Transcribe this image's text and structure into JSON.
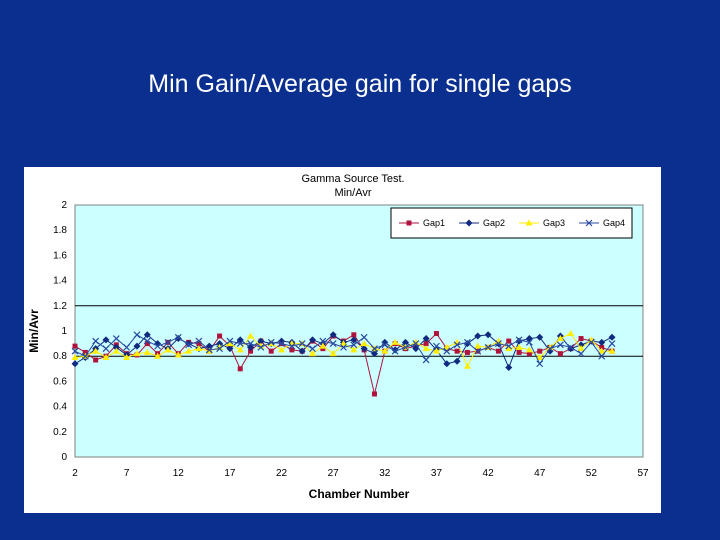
{
  "slide": {
    "title": "Min Gain/Average gain for single gaps"
  },
  "colors": {
    "background": "#0a2f8e",
    "plot_area": "#ccffff",
    "gap1": "#b0123c",
    "gap2": "#102a80",
    "gap3": "#ffee00",
    "gap4": "#2a4aa0"
  },
  "chart_data": {
    "type": "line",
    "title": "Gamma Source Test.",
    "subtitle": "Min/Avr",
    "xlabel": "Chamber Number",
    "ylabel": "Min/Avr",
    "xlim": [
      2,
      57
    ],
    "ylim": [
      0,
      2
    ],
    "x_ticks": [
      "2",
      "7",
      "12",
      "17",
      "22",
      "27",
      "32",
      "37",
      "42",
      "47",
      "52",
      "57"
    ],
    "y_ticks": [
      "0",
      "0.2",
      "0.4",
      "0.6",
      "0.8",
      "1",
      "1.2",
      "1.4",
      "1.6",
      "1.8",
      "2"
    ],
    "reference_lines": [
      0.8,
      1.2
    ],
    "legend_position": "top-right",
    "x": [
      2,
      3,
      4,
      5,
      6,
      7,
      8,
      9,
      10,
      11,
      12,
      13,
      14,
      15,
      16,
      17,
      18,
      19,
      20,
      21,
      22,
      23,
      24,
      25,
      26,
      27,
      28,
      29,
      30,
      31,
      32,
      33,
      34,
      35,
      36,
      37,
      38,
      39,
      40,
      41,
      42,
      43,
      44,
      45,
      46,
      47,
      48,
      49,
      50,
      51,
      52,
      53,
      54
    ],
    "series": [
      {
        "name": "Gap1",
        "marker": "square",
        "values": [
          0.88,
          0.83,
          0.77,
          0.8,
          0.89,
          0.82,
          0.81,
          0.9,
          0.82,
          0.91,
          0.82,
          0.91,
          0.9,
          0.84,
          0.96,
          0.88,
          0.7,
          0.84,
          0.92,
          0.84,
          0.9,
          0.85,
          0.84,
          0.92,
          0.86,
          0.96,
          0.92,
          0.97,
          0.85,
          0.5,
          0.84,
          0.9,
          0.86,
          0.88,
          0.9,
          0.98,
          0.86,
          0.84,
          0.83,
          0.84,
          0.87,
          0.84,
          0.92,
          0.83,
          0.82,
          0.84,
          0.87,
          0.82,
          0.86,
          0.94,
          0.92,
          0.87,
          0.84
        ]
      },
      {
        "name": "Gap2",
        "marker": "diamond",
        "values": [
          0.74,
          0.79,
          0.86,
          0.93,
          0.87,
          0.81,
          0.88,
          0.97,
          0.9,
          0.86,
          0.94,
          0.9,
          0.86,
          0.88,
          0.9,
          0.86,
          0.93,
          0.87,
          0.92,
          0.9,
          0.92,
          0.91,
          0.84,
          0.93,
          0.9,
          0.97,
          0.91,
          0.93,
          0.86,
          0.82,
          0.91,
          0.85,
          0.91,
          0.86,
          0.94,
          0.85,
          0.74,
          0.76,
          0.9,
          0.96,
          0.97,
          0.9,
          0.71,
          0.92,
          0.94,
          0.95,
          0.84,
          0.96,
          0.86,
          0.89,
          0.92,
          0.91,
          0.95
        ]
      },
      {
        "name": "Gap3",
        "marker": "triangle",
        "values": [
          0.79,
          0.8,
          0.84,
          0.79,
          0.84,
          0.79,
          0.82,
          0.83,
          0.8,
          0.85,
          0.81,
          0.84,
          0.86,
          0.84,
          0.87,
          0.9,
          0.85,
          0.96,
          0.88,
          0.9,
          0.85,
          0.9,
          0.9,
          0.82,
          0.88,
          0.82,
          0.9,
          0.85,
          0.9,
          0.86,
          0.84,
          0.91,
          0.87,
          0.91,
          0.86,
          0.84,
          0.87,
          0.91,
          0.72,
          0.88,
          0.87,
          0.92,
          0.86,
          0.87,
          0.85,
          0.79,
          0.87,
          0.94,
          0.98,
          0.86,
          0.93,
          0.84,
          0.84
        ]
      },
      {
        "name": "Gap4",
        "marker": "x",
        "values": [
          0.84,
          0.8,
          0.92,
          0.86,
          0.94,
          0.87,
          0.97,
          0.92,
          0.88,
          0.91,
          0.95,
          0.89,
          0.92,
          0.85,
          0.86,
          0.92,
          0.9,
          0.9,
          0.87,
          0.91,
          0.9,
          0.88,
          0.9,
          0.86,
          0.92,
          0.9,
          0.87,
          0.89,
          0.95,
          0.86,
          0.89,
          0.84,
          0.87,
          0.9,
          0.77,
          0.88,
          0.84,
          0.89,
          0.91,
          0.84,
          0.87,
          0.9,
          0.88,
          0.93,
          0.91,
          0.74,
          0.86,
          0.89,
          0.87,
          0.82,
          0.91,
          0.8,
          0.9
        ]
      }
    ]
  }
}
